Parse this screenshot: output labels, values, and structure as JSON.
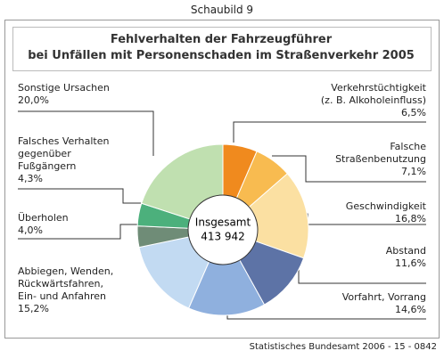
{
  "header": "Schaubild 9",
  "source": "Statistisches Bundesamt 2006 - 15 - 0842",
  "chart_data": {
    "type": "donut",
    "title": "Fehlverhalten der Fahrzeugführer\nbei Unfällen mit Personenschaden im Straßenverkehr 2005",
    "center_label": [
      "Insgesamt",
      "413 942"
    ],
    "categories": [
      "Verkehrstüchtigkeit\n(z. B. Alkoholeinfluss)",
      "Falsche\nStraßenbenutzung",
      "Geschwindigkeit",
      "Abstand",
      "Vorfahrt, Vorrang",
      "Abbiegen, Wenden,\nRückwärtsfahren,\nEin- und Anfahren",
      "Überholen",
      "Falsches Verhalten\ngegenüber\nFußgängern",
      "Sonstige Ursachen"
    ],
    "values": [
      6.5,
      7.1,
      16.8,
      11.6,
      14.6,
      15.2,
      4.0,
      4.3,
      20.0
    ],
    "value_labels": [
      "6,5%",
      "7,1%",
      "16,8%",
      "11,6%",
      "14,6%",
      "15,2%",
      "4,0%",
      "4,3%",
      "20,0%"
    ],
    "colors": [
      "#f08a1e",
      "#f8bb50",
      "#fbe0a2",
      "#5d73a6",
      "#8fb0de",
      "#c2daf2",
      "#6f8c77",
      "#4cb07c",
      "#c0e0b0"
    ]
  }
}
